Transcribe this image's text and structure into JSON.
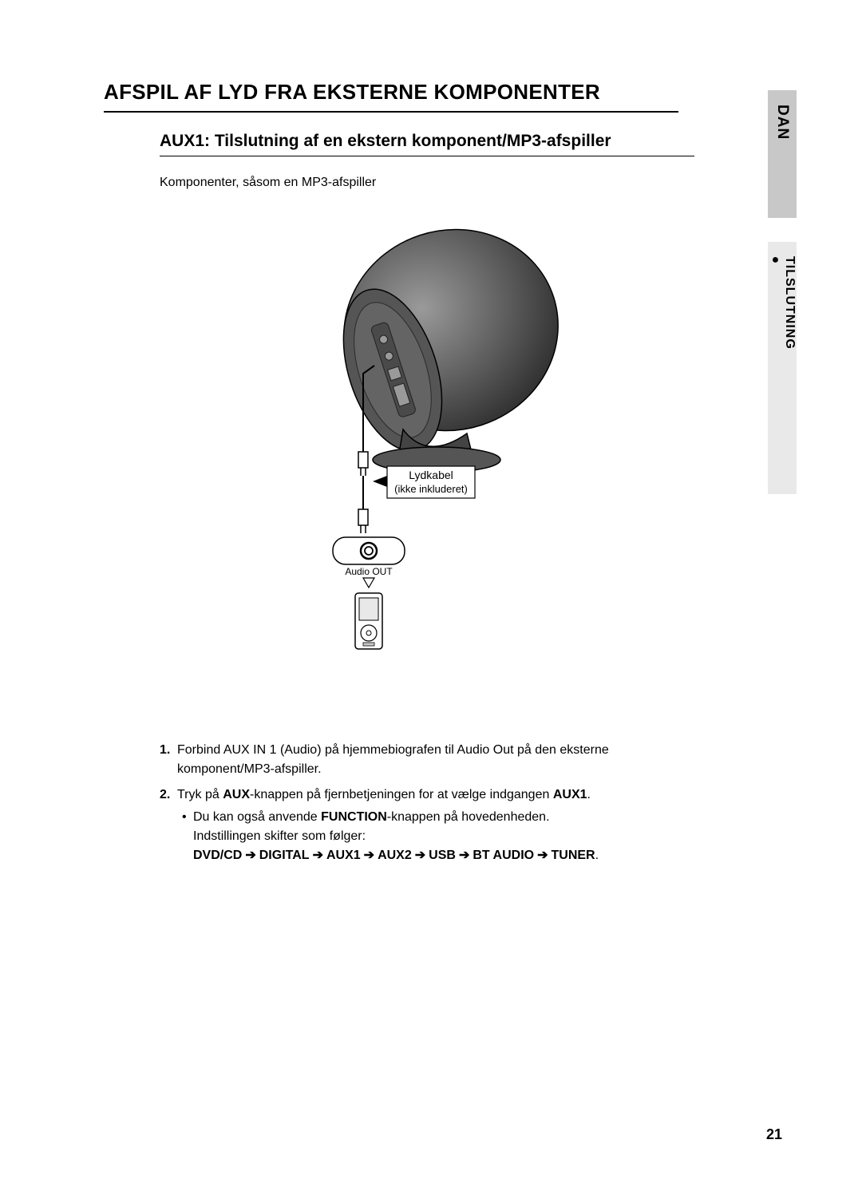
{
  "sideTab": {
    "lang": "DAN",
    "sectionBullet": "●",
    "sectionLabel": "TILSLUTNING"
  },
  "mainTitle": "AFSPIL AF LYD FRA EKSTERNE KOMPONENTER",
  "subTitle": "AUX1: Tilslutning af en ekstern komponent/MP3-afspiller",
  "intro": "Komponenter, såsom en MP3-afspiller",
  "diagram": {
    "cableLabel1": "Lydkabel",
    "cableLabel2": "(ikke inkluderet)",
    "audioOut": "Audio OUT",
    "colors": {
      "deviceDark": "#4a4a4a",
      "deviceMid": "#6b6b6b",
      "deviceLight": "#8a8a8a",
      "line": "#000000",
      "boxBorder": "#000000",
      "background": "#ffffff"
    }
  },
  "steps": [
    {
      "num": "1.",
      "pre": "Forbind AUX IN 1 (Audio) på hjemmebiografen til Audio Out på den eksterne komponent/MP3-afspiller."
    },
    {
      "num": "2.",
      "pre": "Tryk på ",
      "bold1": "AUX",
      "mid1": "-knappen på fjernbetjeningen for at vælge indgangen ",
      "bold2": "AUX1",
      "post1": ".",
      "bullet": {
        "pre": "Du kan også anvende ",
        "bold": "FUNCTION",
        "mid": "-knappen på hovedenheden.",
        "line2": "Indstillingen skifter som følger:",
        "seq": [
          "DVD/CD",
          "DIGITAL",
          "AUX1",
          "AUX2",
          "USB",
          "BT AUDIO",
          "TUNER"
        ]
      }
    }
  ],
  "pageNumber": "21"
}
